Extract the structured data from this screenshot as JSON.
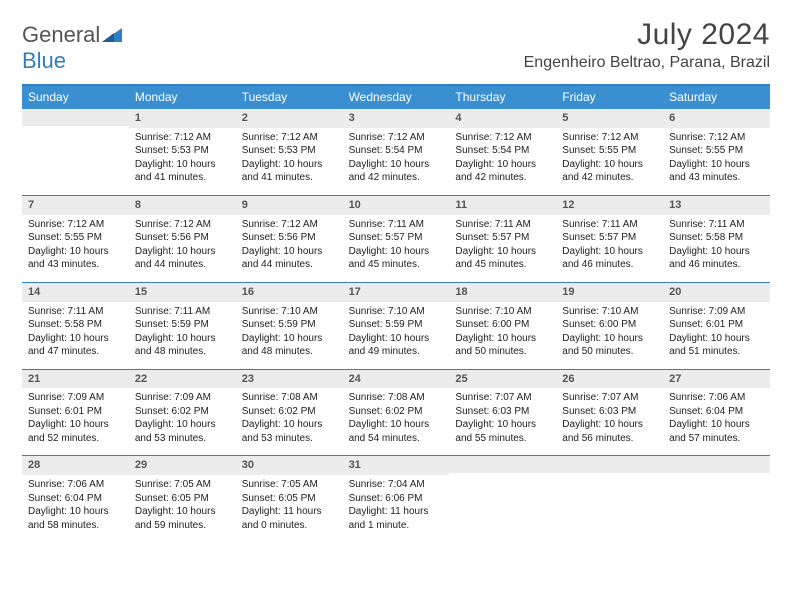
{
  "brand": {
    "text1": "General",
    "text2": "Blue"
  },
  "title": "July 2024",
  "location": "Engenheiro Beltrao, Parana, Brazil",
  "colors": {
    "accent": "#2f7fc1",
    "header_bg": "#3a8fd0",
    "daynum_bg": "#ececec",
    "page_bg": "#ffffff",
    "text": "#333333"
  },
  "dayNames": [
    "Sunday",
    "Monday",
    "Tuesday",
    "Wednesday",
    "Thursday",
    "Friday",
    "Saturday"
  ],
  "weeks": [
    [
      {
        "n": "",
        "lines": []
      },
      {
        "n": "1",
        "lines": [
          "Sunrise: 7:12 AM",
          "Sunset: 5:53 PM",
          "Daylight: 10 hours",
          "and 41 minutes."
        ]
      },
      {
        "n": "2",
        "lines": [
          "Sunrise: 7:12 AM",
          "Sunset: 5:53 PM",
          "Daylight: 10 hours",
          "and 41 minutes."
        ]
      },
      {
        "n": "3",
        "lines": [
          "Sunrise: 7:12 AM",
          "Sunset: 5:54 PM",
          "Daylight: 10 hours",
          "and 42 minutes."
        ]
      },
      {
        "n": "4",
        "lines": [
          "Sunrise: 7:12 AM",
          "Sunset: 5:54 PM",
          "Daylight: 10 hours",
          "and 42 minutes."
        ]
      },
      {
        "n": "5",
        "lines": [
          "Sunrise: 7:12 AM",
          "Sunset: 5:55 PM",
          "Daylight: 10 hours",
          "and 42 minutes."
        ]
      },
      {
        "n": "6",
        "lines": [
          "Sunrise: 7:12 AM",
          "Sunset: 5:55 PM",
          "Daylight: 10 hours",
          "and 43 minutes."
        ]
      }
    ],
    [
      {
        "n": "7",
        "lines": [
          "Sunrise: 7:12 AM",
          "Sunset: 5:55 PM",
          "Daylight: 10 hours",
          "and 43 minutes."
        ]
      },
      {
        "n": "8",
        "lines": [
          "Sunrise: 7:12 AM",
          "Sunset: 5:56 PM",
          "Daylight: 10 hours",
          "and 44 minutes."
        ]
      },
      {
        "n": "9",
        "lines": [
          "Sunrise: 7:12 AM",
          "Sunset: 5:56 PM",
          "Daylight: 10 hours",
          "and 44 minutes."
        ]
      },
      {
        "n": "10",
        "lines": [
          "Sunrise: 7:11 AM",
          "Sunset: 5:57 PM",
          "Daylight: 10 hours",
          "and 45 minutes."
        ]
      },
      {
        "n": "11",
        "lines": [
          "Sunrise: 7:11 AM",
          "Sunset: 5:57 PM",
          "Daylight: 10 hours",
          "and 45 minutes."
        ]
      },
      {
        "n": "12",
        "lines": [
          "Sunrise: 7:11 AM",
          "Sunset: 5:57 PM",
          "Daylight: 10 hours",
          "and 46 minutes."
        ]
      },
      {
        "n": "13",
        "lines": [
          "Sunrise: 7:11 AM",
          "Sunset: 5:58 PM",
          "Daylight: 10 hours",
          "and 46 minutes."
        ]
      }
    ],
    [
      {
        "n": "14",
        "lines": [
          "Sunrise: 7:11 AM",
          "Sunset: 5:58 PM",
          "Daylight: 10 hours",
          "and 47 minutes."
        ]
      },
      {
        "n": "15",
        "lines": [
          "Sunrise: 7:11 AM",
          "Sunset: 5:59 PM",
          "Daylight: 10 hours",
          "and 48 minutes."
        ]
      },
      {
        "n": "16",
        "lines": [
          "Sunrise: 7:10 AM",
          "Sunset: 5:59 PM",
          "Daylight: 10 hours",
          "and 48 minutes."
        ]
      },
      {
        "n": "17",
        "lines": [
          "Sunrise: 7:10 AM",
          "Sunset: 5:59 PM",
          "Daylight: 10 hours",
          "and 49 minutes."
        ]
      },
      {
        "n": "18",
        "lines": [
          "Sunrise: 7:10 AM",
          "Sunset: 6:00 PM",
          "Daylight: 10 hours",
          "and 50 minutes."
        ]
      },
      {
        "n": "19",
        "lines": [
          "Sunrise: 7:10 AM",
          "Sunset: 6:00 PM",
          "Daylight: 10 hours",
          "and 50 minutes."
        ]
      },
      {
        "n": "20",
        "lines": [
          "Sunrise: 7:09 AM",
          "Sunset: 6:01 PM",
          "Daylight: 10 hours",
          "and 51 minutes."
        ]
      }
    ],
    [
      {
        "n": "21",
        "lines": [
          "Sunrise: 7:09 AM",
          "Sunset: 6:01 PM",
          "Daylight: 10 hours",
          "and 52 minutes."
        ]
      },
      {
        "n": "22",
        "lines": [
          "Sunrise: 7:09 AM",
          "Sunset: 6:02 PM",
          "Daylight: 10 hours",
          "and 53 minutes."
        ]
      },
      {
        "n": "23",
        "lines": [
          "Sunrise: 7:08 AM",
          "Sunset: 6:02 PM",
          "Daylight: 10 hours",
          "and 53 minutes."
        ]
      },
      {
        "n": "24",
        "lines": [
          "Sunrise: 7:08 AM",
          "Sunset: 6:02 PM",
          "Daylight: 10 hours",
          "and 54 minutes."
        ]
      },
      {
        "n": "25",
        "lines": [
          "Sunrise: 7:07 AM",
          "Sunset: 6:03 PM",
          "Daylight: 10 hours",
          "and 55 minutes."
        ]
      },
      {
        "n": "26",
        "lines": [
          "Sunrise: 7:07 AM",
          "Sunset: 6:03 PM",
          "Daylight: 10 hours",
          "and 56 minutes."
        ]
      },
      {
        "n": "27",
        "lines": [
          "Sunrise: 7:06 AM",
          "Sunset: 6:04 PM",
          "Daylight: 10 hours",
          "and 57 minutes."
        ]
      }
    ],
    [
      {
        "n": "28",
        "lines": [
          "Sunrise: 7:06 AM",
          "Sunset: 6:04 PM",
          "Daylight: 10 hours",
          "and 58 minutes."
        ]
      },
      {
        "n": "29",
        "lines": [
          "Sunrise: 7:05 AM",
          "Sunset: 6:05 PM",
          "Daylight: 10 hours",
          "and 59 minutes."
        ]
      },
      {
        "n": "30",
        "lines": [
          "Sunrise: 7:05 AM",
          "Sunset: 6:05 PM",
          "Daylight: 11 hours",
          "and 0 minutes."
        ]
      },
      {
        "n": "31",
        "lines": [
          "Sunrise: 7:04 AM",
          "Sunset: 6:06 PM",
          "Daylight: 11 hours",
          "and 1 minute."
        ]
      },
      {
        "n": "",
        "lines": []
      },
      {
        "n": "",
        "lines": []
      },
      {
        "n": "",
        "lines": []
      }
    ]
  ]
}
